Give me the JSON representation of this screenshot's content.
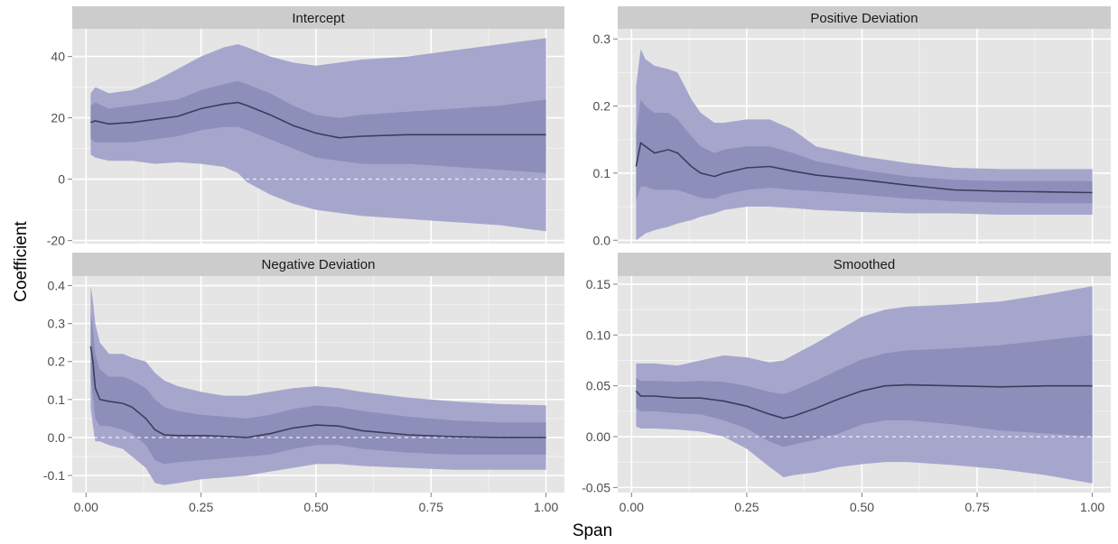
{
  "chart_data": {
    "type": "area",
    "xlabel": "Span",
    "ylabel": "Coefficient",
    "x_ticks": [
      "0.00",
      "0.25",
      "0.50",
      "0.75",
      "1.00"
    ],
    "xlim": [
      -0.03,
      1.04
    ],
    "grid": true,
    "colors": {
      "panel_bg": "#e5e5e5",
      "strip_bg": "#cccccc",
      "grid_major": "#ffffff",
      "outer_band": "#a6a6cd",
      "inner_band": "#8e8ebb",
      "line": "#3c3c5c",
      "zero_line": "#ffffff"
    },
    "panels": [
      {
        "title": "Intercept",
        "ylim": [
          -21,
          49
        ],
        "y_ticks": [
          -20,
          0,
          20,
          40
        ],
        "y_tick_labels": [
          "-20",
          "0",
          "20",
          "40"
        ],
        "x": [
          0.01,
          0.02,
          0.05,
          0.1,
          0.15,
          0.2,
          0.25,
          0.3,
          0.33,
          0.35,
          0.4,
          0.45,
          0.5,
          0.55,
          0.6,
          0.7,
          0.8,
          0.9,
          1.0
        ],
        "estimate": [
          18.5,
          19,
          18,
          18.5,
          19.5,
          20.5,
          23,
          24.5,
          25,
          24,
          21,
          17.5,
          15,
          13.5,
          14,
          14.5,
          14.5,
          14.5,
          14.5
        ],
        "outer_upper": [
          28,
          30,
          28,
          29,
          32,
          36,
          40,
          43,
          44,
          43,
          40,
          38,
          37,
          38,
          39,
          40,
          42,
          44,
          46
        ],
        "outer_lower": [
          8,
          7,
          6,
          6,
          5,
          5.5,
          5,
          4,
          2,
          -1,
          -5,
          -8,
          -10,
          -11,
          -12,
          -13,
          -14,
          -15,
          -17
        ],
        "inner_upper": [
          24,
          25,
          23,
          24,
          25,
          26,
          29,
          31,
          32,
          31,
          28,
          24,
          21,
          20,
          21,
          22,
          23,
          24,
          26
        ],
        "inner_lower": [
          13,
          12,
          12,
          12,
          13,
          14,
          16,
          17,
          17,
          16,
          13,
          10,
          7,
          6,
          5,
          5,
          4,
          3,
          2
        ]
      },
      {
        "title": "Positive Deviation",
        "ylim": [
          -0.005,
          0.315
        ],
        "y_ticks": [
          0.0,
          0.1,
          0.2,
          0.3
        ],
        "y_tick_labels": [
          "0.0",
          "0.1",
          "0.2",
          "0.3"
        ],
        "x": [
          0.01,
          0.02,
          0.03,
          0.05,
          0.08,
          0.1,
          0.13,
          0.15,
          0.18,
          0.2,
          0.25,
          0.3,
          0.35,
          0.4,
          0.5,
          0.6,
          0.7,
          0.8,
          0.9,
          1.0
        ],
        "estimate": [
          0.11,
          0.145,
          0.14,
          0.13,
          0.135,
          0.13,
          0.11,
          0.1,
          0.095,
          0.1,
          0.108,
          0.11,
          0.103,
          0.097,
          0.09,
          0.082,
          0.075,
          0.073,
          0.072,
          0.071
        ],
        "outer_upper": [
          0.23,
          0.285,
          0.27,
          0.26,
          0.255,
          0.25,
          0.21,
          0.19,
          0.175,
          0.175,
          0.18,
          0.18,
          0.165,
          0.14,
          0.125,
          0.115,
          0.108,
          0.106,
          0.106,
          0.106
        ],
        "outer_lower": [
          0.0,
          0.005,
          0.01,
          0.015,
          0.02,
          0.025,
          0.03,
          0.035,
          0.04,
          0.045,
          0.05,
          0.05,
          0.048,
          0.045,
          0.042,
          0.04,
          0.04,
          0.038,
          0.038,
          0.038
        ],
        "inner_upper": [
          0.16,
          0.21,
          0.2,
          0.19,
          0.19,
          0.18,
          0.155,
          0.14,
          0.13,
          0.135,
          0.14,
          0.14,
          0.13,
          0.118,
          0.105,
          0.095,
          0.09,
          0.088,
          0.088,
          0.088
        ],
        "inner_lower": [
          0.06,
          0.08,
          0.08,
          0.075,
          0.075,
          0.075,
          0.068,
          0.063,
          0.062,
          0.068,
          0.075,
          0.078,
          0.075,
          0.073,
          0.068,
          0.062,
          0.058,
          0.056,
          0.055,
          0.055
        ]
      },
      {
        "title": "Negative Deviation",
        "ylim": [
          -0.145,
          0.425
        ],
        "y_ticks": [
          -0.1,
          0.0,
          0.1,
          0.2,
          0.3,
          0.4
        ],
        "y_tick_labels": [
          "-0.1",
          "0.0",
          "0.1",
          "0.2",
          "0.3",
          "0.4"
        ],
        "x": [
          0.01,
          0.015,
          0.02,
          0.03,
          0.05,
          0.08,
          0.1,
          0.13,
          0.15,
          0.17,
          0.2,
          0.25,
          0.3,
          0.35,
          0.4,
          0.45,
          0.5,
          0.55,
          0.6,
          0.7,
          0.8,
          0.9,
          1.0
        ],
        "estimate": [
          0.24,
          0.2,
          0.13,
          0.1,
          0.095,
          0.09,
          0.08,
          0.05,
          0.02,
          0.007,
          0.005,
          0.005,
          0.003,
          0.0,
          0.01,
          0.025,
          0.033,
          0.03,
          0.018,
          0.007,
          0.002,
          0.0,
          0.0
        ],
        "outer_upper": [
          0.4,
          0.36,
          0.3,
          0.25,
          0.22,
          0.22,
          0.21,
          0.2,
          0.17,
          0.15,
          0.135,
          0.12,
          0.11,
          0.11,
          0.12,
          0.13,
          0.135,
          0.13,
          0.12,
          0.105,
          0.095,
          0.088,
          0.085
        ],
        "outer_lower": [
          0.08,
          0.03,
          -0.01,
          -0.01,
          -0.02,
          -0.03,
          -0.05,
          -0.08,
          -0.12,
          -0.125,
          -0.12,
          -0.11,
          -0.105,
          -0.1,
          -0.09,
          -0.08,
          -0.07,
          -0.07,
          -0.075,
          -0.08,
          -0.085,
          -0.085,
          -0.085
        ],
        "inner_upper": [
          0.33,
          0.29,
          0.22,
          0.18,
          0.16,
          0.16,
          0.15,
          0.13,
          0.1,
          0.08,
          0.07,
          0.06,
          0.055,
          0.05,
          0.06,
          0.075,
          0.085,
          0.08,
          0.07,
          0.055,
          0.045,
          0.04,
          0.04
        ],
        "inner_lower": [
          0.15,
          0.11,
          0.05,
          0.03,
          0.03,
          0.02,
          0.01,
          -0.02,
          -0.06,
          -0.07,
          -0.065,
          -0.06,
          -0.055,
          -0.05,
          -0.045,
          -0.03,
          -0.02,
          -0.02,
          -0.03,
          -0.04,
          -0.045,
          -0.045,
          -0.045
        ]
      },
      {
        "title": "Smoothed",
        "ylim": [
          -0.055,
          0.158
        ],
        "y_ticks": [
          -0.05,
          0.0,
          0.05,
          0.1,
          0.15
        ],
        "y_tick_labels": [
          "-0.05",
          "0.00",
          "0.05",
          "0.10",
          "0.15"
        ],
        "x": [
          0.01,
          0.02,
          0.05,
          0.1,
          0.15,
          0.2,
          0.25,
          0.3,
          0.33,
          0.35,
          0.4,
          0.45,
          0.5,
          0.55,
          0.6,
          0.7,
          0.8,
          0.9,
          1.0
        ],
        "estimate": [
          0.045,
          0.04,
          0.04,
          0.038,
          0.038,
          0.035,
          0.03,
          0.022,
          0.018,
          0.02,
          0.028,
          0.037,
          0.045,
          0.05,
          0.051,
          0.05,
          0.049,
          0.05,
          0.05
        ],
        "outer_upper": [
          0.072,
          0.072,
          0.072,
          0.07,
          0.075,
          0.08,
          0.078,
          0.073,
          0.075,
          0.08,
          0.092,
          0.105,
          0.118,
          0.125,
          0.128,
          0.13,
          0.133,
          0.14,
          0.148
        ],
        "outer_lower": [
          0.01,
          0.008,
          0.008,
          0.007,
          0.005,
          0.0,
          -0.012,
          -0.03,
          -0.04,
          -0.038,
          -0.035,
          -0.03,
          -0.027,
          -0.025,
          -0.025,
          -0.028,
          -0.032,
          -0.038,
          -0.046
        ],
        "inner_upper": [
          0.058,
          0.055,
          0.055,
          0.054,
          0.055,
          0.054,
          0.05,
          0.044,
          0.042,
          0.045,
          0.055,
          0.066,
          0.076,
          0.082,
          0.085,
          0.087,
          0.09,
          0.095,
          0.1
        ],
        "inner_lower": [
          0.028,
          0.025,
          0.025,
          0.023,
          0.022,
          0.016,
          0.008,
          -0.005,
          -0.01,
          -0.008,
          -0.003,
          0.003,
          0.012,
          0.016,
          0.016,
          0.012,
          0.006,
          0.003,
          0.0
        ]
      }
    ]
  }
}
